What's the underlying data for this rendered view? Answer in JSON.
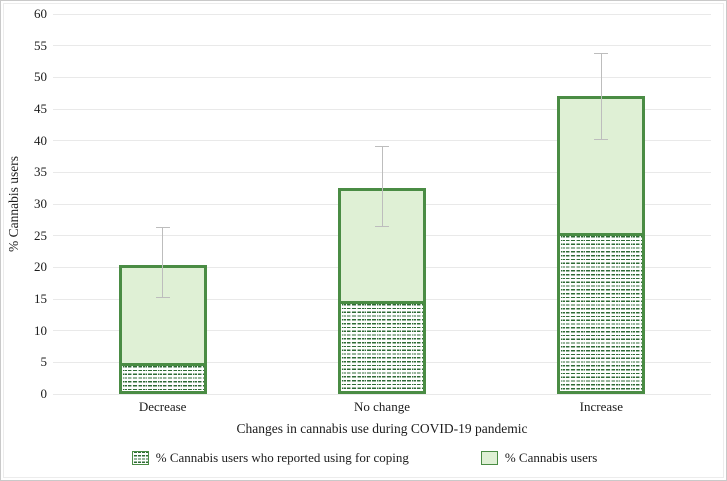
{
  "chart_data": {
    "type": "bar",
    "subtype": "stacked-overlay-with-error-bars",
    "title": "",
    "xlabel": "Changes in cannabis use during COVID-19 pandemic",
    "ylabel": "% Cannabis users",
    "ylim": [
      0,
      60
    ],
    "ytick_step": 5,
    "grid": true,
    "legend_position": "bottom",
    "categories": [
      "Decrease",
      "No change",
      "Increase"
    ],
    "series": [
      {
        "name": "% Cannabis users who reported using for coping",
        "style": "hatched",
        "values": [
          4.5,
          14.2,
          25.0
        ]
      },
      {
        "name": "% Cannabis users",
        "style": "solid",
        "values": [
          20.3,
          32.5,
          47.0
        ]
      }
    ],
    "error_bars": {
      "applies_to": "% Cannabis users",
      "low": [
        15.3,
        26.5,
        40.3
      ],
      "high": [
        26.3,
        39.2,
        53.8
      ]
    },
    "colors": {
      "bar_border": "#4a8c44",
      "bar_fill": "#dff0d5",
      "hatch_green": "#2e6b35",
      "gridline": "#e9e9e9",
      "error_bar": "#bdbdbd",
      "text": "#1c1c1c"
    }
  }
}
